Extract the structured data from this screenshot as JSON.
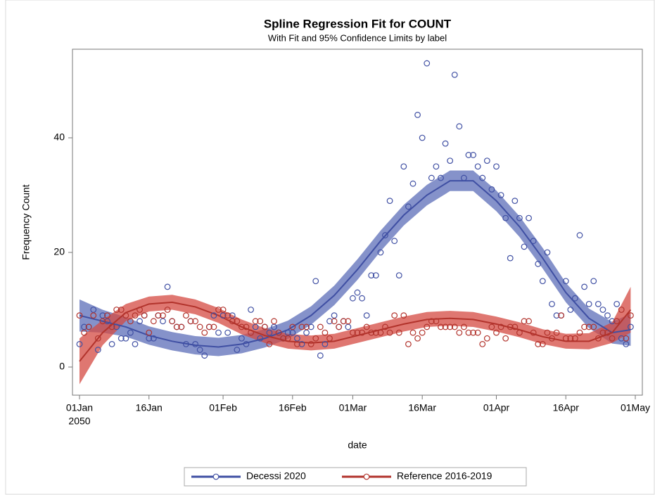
{
  "chart_data": {
    "type": "scatter",
    "title": "Spline Regression Fit for COUNT",
    "subtitle": "With Fit and 95% Confidence Limits by label",
    "x_label": "date",
    "y_label": "Frequency Count",
    "xlim": [
      "2050-01-01",
      "2050-05-01"
    ],
    "ylim": [
      -5,
      55
    ],
    "yticks": [
      0,
      20,
      40
    ],
    "xticks": [
      {
        "value": "2050-01-01",
        "label": "01Jan",
        "year_label": "2050"
      },
      {
        "value": "2050-01-16",
        "label": "16Jan"
      },
      {
        "value": "2050-02-01",
        "label": "01Feb"
      },
      {
        "value": "2050-02-16",
        "label": "16Feb"
      },
      {
        "value": "2050-03-01",
        "label": "01Mar"
      },
      {
        "value": "2050-03-16",
        "label": "16Mar"
      },
      {
        "value": "2050-04-01",
        "label": "01Apr"
      },
      {
        "value": "2050-04-16",
        "label": "16Apr"
      },
      {
        "value": "2050-05-01",
        "label": "01May"
      }
    ],
    "grid": false,
    "legend": "bottom",
    "x": [
      "2050-01-01",
      "2050-01-02",
      "2050-01-03",
      "2050-01-04",
      "2050-01-05",
      "2050-01-06",
      "2050-01-07",
      "2050-01-08",
      "2050-01-09",
      "2050-01-10",
      "2050-01-11",
      "2050-01-12",
      "2050-01-13",
      "2050-01-14",
      "2050-01-15",
      "2050-01-16",
      "2050-01-17",
      "2050-01-18",
      "2050-01-19",
      "2050-01-20",
      "2050-01-21",
      "2050-01-22",
      "2050-01-23",
      "2050-01-24",
      "2050-01-25",
      "2050-01-26",
      "2050-01-27",
      "2050-01-28",
      "2050-01-29",
      "2050-01-30",
      "2050-01-31",
      "2050-02-01",
      "2050-02-02",
      "2050-02-03",
      "2050-02-04",
      "2050-02-05",
      "2050-02-06",
      "2050-02-07",
      "2050-02-08",
      "2050-02-09",
      "2050-02-10",
      "2050-02-11",
      "2050-02-12",
      "2050-02-13",
      "2050-02-14",
      "2050-02-15",
      "2050-02-16",
      "2050-02-17",
      "2050-02-18",
      "2050-02-19",
      "2050-02-20",
      "2050-02-21",
      "2050-02-22",
      "2050-02-23",
      "2050-02-24",
      "2050-02-25",
      "2050-02-26",
      "2050-02-27",
      "2050-02-28",
      "2050-03-01",
      "2050-03-02",
      "2050-03-03",
      "2050-03-04",
      "2050-03-05",
      "2050-03-06",
      "2050-03-07",
      "2050-03-08",
      "2050-03-09",
      "2050-03-10",
      "2050-03-11",
      "2050-03-12",
      "2050-03-13",
      "2050-03-14",
      "2050-03-15",
      "2050-03-16",
      "2050-03-17",
      "2050-03-18",
      "2050-03-19",
      "2050-03-20",
      "2050-03-21",
      "2050-03-22",
      "2050-03-23",
      "2050-03-24",
      "2050-03-25",
      "2050-03-26",
      "2050-03-27",
      "2050-03-28",
      "2050-03-29",
      "2050-03-30",
      "2050-03-31",
      "2050-04-01",
      "2050-04-02",
      "2050-04-03",
      "2050-04-04",
      "2050-04-05",
      "2050-04-06",
      "2050-04-07",
      "2050-04-08",
      "2050-04-09",
      "2050-04-10",
      "2050-04-11",
      "2050-04-12",
      "2050-04-13",
      "2050-04-14",
      "2050-04-15",
      "2050-04-16",
      "2050-04-17",
      "2050-04-18",
      "2050-04-19",
      "2050-04-20",
      "2050-04-21",
      "2050-04-22",
      "2050-04-23",
      "2050-04-24",
      "2050-04-25",
      "2050-04-26",
      "2050-04-27",
      "2050-04-28",
      "2050-04-29",
      "2050-04-30"
    ],
    "fit_x": [
      "2050-01-01",
      "2050-01-06",
      "2050-01-11",
      "2050-01-16",
      "2050-01-21",
      "2050-01-26",
      "2050-01-31",
      "2050-02-05",
      "2050-02-10",
      "2050-02-15",
      "2050-02-20",
      "2050-02-25",
      "2050-03-02",
      "2050-03-07",
      "2050-03-12",
      "2050-03-17",
      "2050-03-22",
      "2050-03-27",
      "2050-04-01",
      "2050-04-06",
      "2050-04-11",
      "2050-04-16",
      "2050-04-21",
      "2050-04-26",
      "2050-04-30"
    ],
    "series": [
      {
        "name": "Decessi 2020",
        "color": "#3f4fa3",
        "band_color": "#5c6db8",
        "values": [
          4,
          7,
          7,
          10,
          3,
          9,
          8,
          4,
          7,
          5,
          5,
          6,
          4,
          8,
          9,
          5,
          5,
          9,
          8,
          14,
          8,
          7,
          7,
          4,
          8,
          4,
          3,
          2,
          7,
          9,
          6,
          9,
          6,
          9,
          3,
          5,
          4,
          10,
          7,
          5,
          7,
          6,
          7,
          6,
          5,
          6,
          6,
          5,
          4,
          6,
          7,
          15,
          2,
          4,
          8,
          9,
          7,
          8,
          7,
          12,
          13,
          12,
          9,
          16,
          16,
          20,
          23,
          29,
          22,
          16,
          35,
          28,
          32,
          44,
          40,
          53,
          33,
          35,
          33,
          39,
          36,
          51,
          42,
          33,
          37,
          37,
          35,
          33,
          36,
          31,
          35,
          30,
          26,
          19,
          29,
          26,
          21,
          26,
          22,
          18,
          15,
          20,
          11,
          9,
          9,
          15,
          10,
          12,
          23,
          14,
          11,
          15,
          11,
          10,
          9,
          8,
          11,
          5,
          4,
          7
        ],
        "fit": [
          9,
          8,
          7,
          5.5,
          4.5,
          3.8,
          3.5,
          4,
          5,
          6.5,
          9,
          12.5,
          17,
          22,
          26.5,
          30,
          32.5,
          32.5,
          29,
          24.5,
          19,
          13,
          8.5,
          6,
          6.5
        ],
        "lower": [
          6.2,
          6,
          5.3,
          3.9,
          2.9,
          2.2,
          1.9,
          2.4,
          3.4,
          4.9,
          7.4,
          10.8,
          15.2,
          20.2,
          24.7,
          28.2,
          30.7,
          30.7,
          27.2,
          22.7,
          17.2,
          11.3,
          6.8,
          4.1,
          3.7
        ],
        "upper": [
          11.8,
          10,
          8.7,
          7.1,
          6.1,
          5.4,
          5.1,
          5.6,
          6.6,
          8.1,
          10.6,
          14.2,
          18.8,
          23.8,
          28.3,
          31.8,
          34.3,
          34.3,
          30.8,
          26.3,
          20.8,
          14.7,
          10.2,
          7.9,
          9.3
        ]
      },
      {
        "name": "Reference 2016-2019",
        "color": "#b2332c",
        "band_color": "#d44a42",
        "values": [
          9,
          6,
          7,
          9,
          5,
          8,
          9,
          7,
          10,
          10,
          9,
          8,
          9,
          10,
          9,
          6,
          8,
          9,
          9,
          10,
          8,
          7,
          7,
          9,
          8,
          8,
          7,
          6,
          7,
          7,
          10,
          10,
          9,
          8,
          8,
          7,
          7,
          6,
          8,
          8,
          7,
          4,
          8,
          6,
          5,
          5,
          7,
          4,
          7,
          7,
          4,
          5,
          7,
          6,
          5,
          8,
          7,
          8,
          8,
          6,
          6,
          6,
          7,
          6,
          6,
          6,
          7,
          6,
          9,
          6,
          9,
          4,
          6,
          5,
          6,
          7,
          8,
          8,
          7,
          7,
          7,
          7,
          6,
          7,
          6,
          6,
          6,
          4,
          5,
          7,
          6,
          7,
          5,
          7,
          7,
          6,
          8,
          8,
          6,
          4,
          4,
          6,
          5,
          6,
          9,
          5,
          5,
          5,
          6,
          7,
          7,
          7,
          5,
          6,
          6,
          5,
          8,
          10,
          5,
          9
        ],
        "fit": [
          1,
          6,
          9.5,
          11,
          11.3,
          10.5,
          9,
          7,
          5.5,
          4.5,
          4.2,
          4.5,
          5.5,
          6.5,
          7.5,
          8.3,
          8.5,
          8.3,
          7.5,
          6.5,
          5.3,
          4.5,
          4.5,
          6,
          10
        ],
        "lower": [
          -3,
          3.8,
          8,
          9.7,
          10,
          9.2,
          7.7,
          5.7,
          4.2,
          3.2,
          2.9,
          3.2,
          4.2,
          5.2,
          6.2,
          7,
          7.2,
          7,
          6.2,
          5.2,
          4,
          3.2,
          3.1,
          4.2,
          6
        ],
        "upper": [
          5,
          8.2,
          11,
          12.3,
          12.6,
          11.8,
          10.3,
          8.3,
          6.8,
          5.8,
          5.5,
          5.8,
          6.8,
          7.8,
          8.8,
          9.6,
          9.8,
          9.6,
          8.8,
          7.8,
          6.6,
          5.8,
          5.9,
          7.8,
          14
        ]
      }
    ]
  }
}
